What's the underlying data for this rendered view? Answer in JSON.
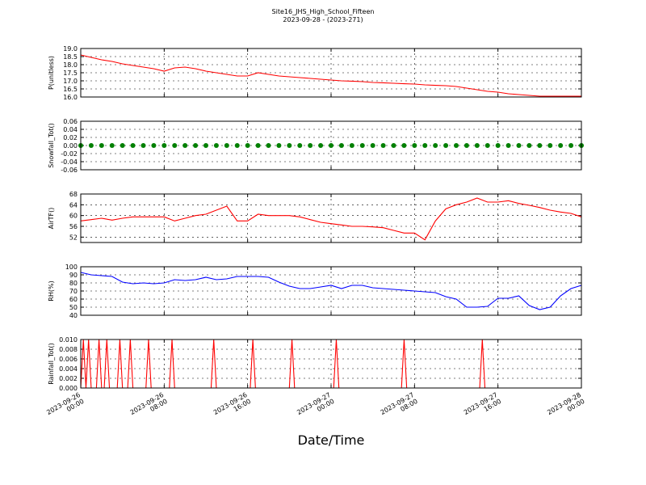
{
  "chart_data": [
    {
      "type": "line",
      "title": "Site16_JHS_High_School_Fifteen",
      "subtitle": "2023-09-28 - (2023-271)",
      "ylabel": "P(unitless)",
      "color": "#ff0000",
      "x": [
        "2023-09-26 00:00",
        "2023-09-26 01:00",
        "2023-09-26 02:00",
        "2023-09-26 03:00",
        "2023-09-26 04:00",
        "2023-09-26 05:00",
        "2023-09-26 06:00",
        "2023-09-26 07:00",
        "2023-09-26 08:00",
        "2023-09-26 09:00",
        "2023-09-26 10:00",
        "2023-09-26 11:00",
        "2023-09-26 12:00",
        "2023-09-26 13:00",
        "2023-09-26 14:00",
        "2023-09-26 15:00",
        "2023-09-26 16:00",
        "2023-09-26 17:00",
        "2023-09-26 18:00",
        "2023-09-26 19:00",
        "2023-09-26 20:00",
        "2023-09-26 21:00",
        "2023-09-26 22:00",
        "2023-09-26 23:00",
        "2023-09-27 00:00",
        "2023-09-27 01:00",
        "2023-09-27 02:00",
        "2023-09-27 03:00",
        "2023-09-27 04:00",
        "2023-09-27 05:00",
        "2023-09-27 06:00",
        "2023-09-27 07:00",
        "2023-09-27 08:00",
        "2023-09-27 09:00",
        "2023-09-27 10:00",
        "2023-09-27 11:00",
        "2023-09-27 12:00",
        "2023-09-27 13:00",
        "2023-09-27 14:00",
        "2023-09-27 15:00",
        "2023-09-27 16:00",
        "2023-09-27 17:00",
        "2023-09-27 18:00",
        "2023-09-27 19:00",
        "2023-09-27 20:00",
        "2023-09-27 21:00",
        "2023-09-27 22:00",
        "2023-09-27 23:00",
        "2023-09-28 00:00"
      ],
      "values": [
        18.6,
        18.45,
        18.3,
        18.2,
        18.05,
        17.95,
        17.85,
        17.75,
        17.6,
        17.8,
        17.85,
        17.75,
        17.6,
        17.5,
        17.4,
        17.3,
        17.3,
        17.5,
        17.4,
        17.3,
        17.25,
        17.2,
        17.15,
        17.1,
        17.05,
        17.0,
        16.98,
        16.95,
        16.9,
        16.88,
        16.85,
        16.82,
        16.8,
        16.75,
        16.72,
        16.7,
        16.65,
        16.55,
        16.45,
        16.35,
        16.3,
        16.2,
        16.15,
        16.1,
        16.05,
        16.05,
        16.05,
        16.05,
        16.05
      ],
      "xlim": [
        "2023-09-26 00:00",
        "2023-09-28 00:00"
      ],
      "ylim": [
        16,
        19
      ],
      "yticks": [
        {
          "value": 16,
          "label": "16.0"
        },
        {
          "value": 16.5,
          "label": "16.5"
        },
        {
          "value": 17,
          "label": "17.0"
        },
        {
          "value": 17.5,
          "label": "17.5"
        },
        {
          "value": 18,
          "label": "18.0"
        },
        {
          "value": 18.5,
          "label": "18.5"
        },
        {
          "value": 19,
          "label": "19.0"
        }
      ],
      "grid": true
    },
    {
      "type": "scatter",
      "ylabel": "Snowfall_Tot()",
      "color": "#008000",
      "x": [
        "2023-09-26 00:00",
        "2023-09-26 01:00",
        "2023-09-26 02:00",
        "2023-09-26 03:00",
        "2023-09-26 04:00",
        "2023-09-26 05:00",
        "2023-09-26 06:00",
        "2023-09-26 07:00",
        "2023-09-26 08:00",
        "2023-09-26 09:00",
        "2023-09-26 10:00",
        "2023-09-26 11:00",
        "2023-09-26 12:00",
        "2023-09-26 13:00",
        "2023-09-26 14:00",
        "2023-09-26 15:00",
        "2023-09-26 16:00",
        "2023-09-26 17:00",
        "2023-09-26 18:00",
        "2023-09-26 19:00",
        "2023-09-26 20:00",
        "2023-09-26 21:00",
        "2023-09-26 22:00",
        "2023-09-26 23:00",
        "2023-09-27 00:00",
        "2023-09-27 01:00",
        "2023-09-27 02:00",
        "2023-09-27 03:00",
        "2023-09-27 04:00",
        "2023-09-27 05:00",
        "2023-09-27 06:00",
        "2023-09-27 07:00",
        "2023-09-27 08:00",
        "2023-09-27 09:00",
        "2023-09-27 10:00",
        "2023-09-27 11:00",
        "2023-09-27 12:00",
        "2023-09-27 13:00",
        "2023-09-27 14:00",
        "2023-09-27 15:00",
        "2023-09-27 16:00",
        "2023-09-27 17:00",
        "2023-09-27 18:00",
        "2023-09-27 19:00",
        "2023-09-27 20:00",
        "2023-09-27 21:00",
        "2023-09-27 22:00",
        "2023-09-27 23:00",
        "2023-09-28 00:00"
      ],
      "values": [
        0,
        0,
        0,
        0,
        0,
        0,
        0,
        0,
        0,
        0,
        0,
        0,
        0,
        0,
        0,
        0,
        0,
        0,
        0,
        0,
        0,
        0,
        0,
        0,
        0,
        0,
        0,
        0,
        0,
        0,
        0,
        0,
        0,
        0,
        0,
        0,
        0,
        0,
        0,
        0,
        0,
        0,
        0,
        0,
        0,
        0,
        0,
        0,
        0
      ],
      "xlim": [
        "2023-09-26 00:00",
        "2023-09-28 00:00"
      ],
      "ylim": [
        -0.06,
        0.06
      ],
      "yticks": [
        -0.06,
        -0.04,
        -0.02,
        {
          "value": 0,
          "label": "0.00"
        },
        0.02,
        0.04,
        0.06
      ],
      "grid": true
    },
    {
      "type": "line",
      "ylabel": "AirTF()",
      "color": "#ff0000",
      "x": [
        "2023-09-26 00:00",
        "2023-09-26 01:00",
        "2023-09-26 02:00",
        "2023-09-26 03:00",
        "2023-09-26 04:00",
        "2023-09-26 05:00",
        "2023-09-26 06:00",
        "2023-09-26 07:00",
        "2023-09-26 08:00",
        "2023-09-26 09:00",
        "2023-09-26 10:00",
        "2023-09-26 11:00",
        "2023-09-26 12:00",
        "2023-09-26 13:00",
        "2023-09-26 14:00",
        "2023-09-26 15:00",
        "2023-09-26 16:00",
        "2023-09-26 17:00",
        "2023-09-26 18:00",
        "2023-09-26 19:00",
        "2023-09-26 20:00",
        "2023-09-26 21:00",
        "2023-09-26 22:00",
        "2023-09-26 23:00",
        "2023-09-27 00:00",
        "2023-09-27 01:00",
        "2023-09-27 02:00",
        "2023-09-27 03:00",
        "2023-09-27 04:00",
        "2023-09-27 05:00",
        "2023-09-27 06:00",
        "2023-09-27 07:00",
        "2023-09-27 08:00",
        "2023-09-27 09:00",
        "2023-09-27 10:00",
        "2023-09-27 11:00",
        "2023-09-27 12:00",
        "2023-09-27 13:00",
        "2023-09-27 14:00",
        "2023-09-27 15:00",
        "2023-09-27 16:00",
        "2023-09-27 17:00",
        "2023-09-27 18:00",
        "2023-09-27 19:00",
        "2023-09-27 20:00",
        "2023-09-27 21:00",
        "2023-09-27 22:00",
        "2023-09-27 23:00",
        "2023-09-28 00:00"
      ],
      "values": [
        58,
        58.5,
        59,
        58.3,
        59,
        59.5,
        59.5,
        59.5,
        59.5,
        58,
        59,
        60,
        60.5,
        62,
        63.5,
        58,
        58,
        60.5,
        60,
        60,
        60,
        59.5,
        58.5,
        57.5,
        57,
        56.5,
        56,
        56,
        55.8,
        55.5,
        54.5,
        53.5,
        53.5,
        51,
        58,
        62.5,
        64,
        65,
        66.5,
        65,
        65,
        65.5,
        64.5,
        63.8,
        63,
        62,
        61.3,
        60.8,
        59.5
      ],
      "xlim": [
        "2023-09-26 00:00",
        "2023-09-28 00:00"
      ],
      "ylim": [
        50,
        68
      ],
      "yticks": [
        52,
        56,
        60,
        64,
        68
      ],
      "grid": true
    },
    {
      "type": "line",
      "ylabel": "RH(%)",
      "color": "#0000ff",
      "x": [
        "2023-09-26 00:00",
        "2023-09-26 01:00",
        "2023-09-26 02:00",
        "2023-09-26 03:00",
        "2023-09-26 04:00",
        "2023-09-26 05:00",
        "2023-09-26 06:00",
        "2023-09-26 07:00",
        "2023-09-26 08:00",
        "2023-09-26 09:00",
        "2023-09-26 10:00",
        "2023-09-26 11:00",
        "2023-09-26 12:00",
        "2023-09-26 13:00",
        "2023-09-26 14:00",
        "2023-09-26 15:00",
        "2023-09-26 16:00",
        "2023-09-26 17:00",
        "2023-09-26 18:00",
        "2023-09-26 19:00",
        "2023-09-26 20:00",
        "2023-09-26 21:00",
        "2023-09-26 22:00",
        "2023-09-26 23:00",
        "2023-09-27 00:00",
        "2023-09-27 01:00",
        "2023-09-27 02:00",
        "2023-09-27 03:00",
        "2023-09-27 04:00",
        "2023-09-27 05:00",
        "2023-09-27 06:00",
        "2023-09-27 07:00",
        "2023-09-27 08:00",
        "2023-09-27 09:00",
        "2023-09-27 10:00",
        "2023-09-27 11:00",
        "2023-09-27 12:00",
        "2023-09-27 13:00",
        "2023-09-27 14:00",
        "2023-09-27 15:00",
        "2023-09-27 16:00",
        "2023-09-27 17:00",
        "2023-09-27 18:00",
        "2023-09-27 19:00",
        "2023-09-27 20:00",
        "2023-09-27 21:00",
        "2023-09-27 22:00",
        "2023-09-27 23:00",
        "2023-09-28 00:00"
      ],
      "values": [
        93,
        90,
        89,
        88,
        81,
        79,
        80,
        79,
        80,
        84,
        83,
        84,
        87,
        84,
        85,
        88,
        88,
        88,
        87,
        81,
        76,
        73,
        73,
        75,
        77,
        73,
        77,
        77,
        74,
        73,
        72,
        71,
        70,
        69,
        68,
        63,
        60,
        50,
        50,
        51,
        61,
        61,
        64,
        52,
        47,
        50,
        64,
        73,
        77
      ],
      "xlim": [
        "2023-09-26 00:00",
        "2023-09-28 00:00"
      ],
      "ylim": [
        40,
        100
      ],
      "yticks": [
        40,
        50,
        60,
        70,
        80,
        90,
        100
      ],
      "grid": true
    },
    {
      "type": "line",
      "ylabel": "Rainfall_Tot()",
      "xlabel": "Date/Time",
      "color": "#ff0000",
      "x": [
        "2023-09-26 00:00",
        "2023-09-26 00:15",
        "2023-09-26 00:30",
        "2023-09-26 00:45",
        "2023-09-26 01:00",
        "2023-09-26 01:30",
        "2023-09-26 01:45",
        "2023-09-26 02:00",
        "2023-09-26 02:15",
        "2023-09-26 02:30",
        "2023-09-26 02:45",
        "2023-09-26 03:30",
        "2023-09-26 03:45",
        "2023-09-26 04:00",
        "2023-09-26 04:30",
        "2023-09-26 04:45",
        "2023-09-26 05:00",
        "2023-09-26 06:15",
        "2023-09-26 06:30",
        "2023-09-26 06:45",
        "2023-09-26 08:30",
        "2023-09-26 08:45",
        "2023-09-26 09:00",
        "2023-09-26 12:30",
        "2023-09-26 12:45",
        "2023-09-26 13:00",
        "2023-09-26 16:15",
        "2023-09-26 16:30",
        "2023-09-26 16:45",
        "2023-09-26 20:00",
        "2023-09-26 20:15",
        "2023-09-26 20:30",
        "2023-09-27 00:15",
        "2023-09-27 00:30",
        "2023-09-27 00:45",
        "2023-09-27 06:45",
        "2023-09-27 07:00",
        "2023-09-27 07:15",
        "2023-09-27 14:15",
        "2023-09-27 14:30",
        "2023-09-27 14:45",
        "2023-09-28 00:00"
      ],
      "values": [
        0,
        0.01,
        0,
        0.01,
        0,
        0,
        0.01,
        0,
        0,
        0.01,
        0,
        0,
        0.01,
        0,
        0,
        0.01,
        0,
        0,
        0.01,
        0,
        0,
        0.01,
        0,
        0,
        0.01,
        0,
        0,
        0.01,
        0,
        0,
        0.01,
        0,
        0,
        0.01,
        0,
        0,
        0.01,
        0,
        0,
        0.01,
        0,
        0
      ],
      "xlim": [
        "2023-09-26 00:00",
        "2023-09-28 00:00"
      ],
      "ylim": [
        0,
        0.01
      ],
      "yticks": [
        {
          "value": 0,
          "label": "0.000"
        },
        {
          "value": 0.002,
          "label": "0.002"
        },
        {
          "value": 0.004,
          "label": "0.004"
        },
        {
          "value": 0.006,
          "label": "0.006"
        },
        {
          "value": 0.008,
          "label": "0.008"
        },
        {
          "value": 0.01,
          "label": "0.010"
        }
      ],
      "xticks": [
        {
          "value": "2023-09-26 00:00",
          "label": "2023-09-26 00:00"
        },
        {
          "value": "2023-09-26 08:00",
          "label": "2023-09-26 08:00"
        },
        {
          "value": "2023-09-26 16:00",
          "label": "2023-09-26 16:00"
        },
        {
          "value": "2023-09-27 00:00",
          "label": "2023-09-27 00:00"
        },
        {
          "value": "2023-09-27 08:00",
          "label": "2023-09-27 08:00"
        },
        {
          "value": "2023-09-27 16:00",
          "label": "2023-09-27 16:00"
        },
        {
          "value": "2023-09-28 00:00",
          "label": "2023-09-28 00:00"
        }
      ],
      "grid": true
    }
  ]
}
